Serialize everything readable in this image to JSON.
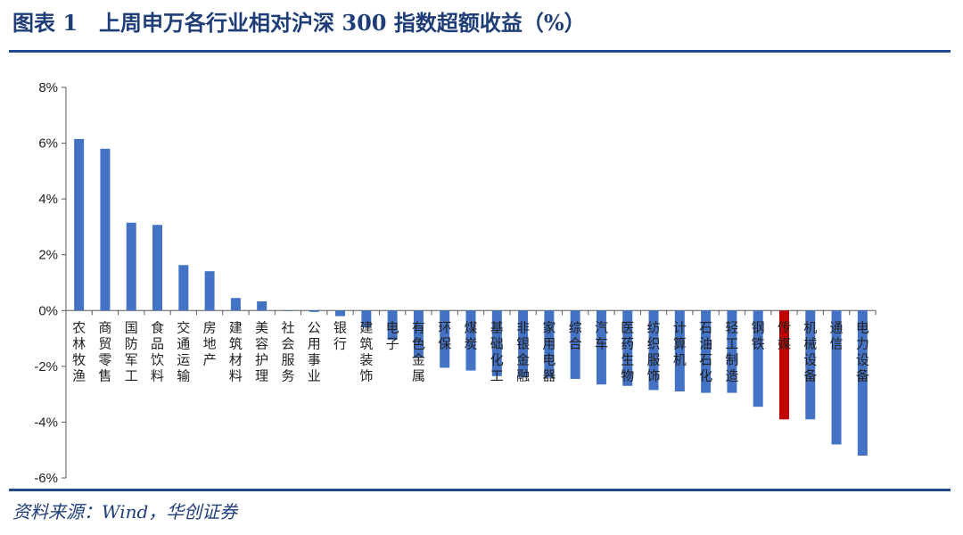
{
  "title": "图表 1　上周申万各行业相对沪深 300 指数超额收益（%）",
  "source": "资料来源：Wind，华创证券",
  "colors": {
    "bar": "#4472c4",
    "highlight": "#c00000",
    "axis": "#595959",
    "frame": "#1f4b8f"
  },
  "chart_data": {
    "type": "bar",
    "title": "上周申万各行业相对沪深 300 指数超额收益（%）",
    "xlabel": "",
    "ylabel": "",
    "ylim": [
      -6,
      8
    ],
    "yticks": [
      "8%",
      "6%",
      "4%",
      "2%",
      "0%",
      "-2%",
      "-4%",
      "-6%"
    ],
    "ytick_values": [
      8,
      6,
      4,
      2,
      0,
      -2,
      -4,
      -6
    ],
    "grid": false,
    "highlight_category": "传媒",
    "categories": [
      "农林牧渔",
      "商贸零售",
      "国防军工",
      "食品饮料",
      "交通运输",
      "房地产",
      "建筑材料",
      "美容护理",
      "社会服务",
      "公用事业",
      "银行",
      "建筑装饰",
      "电子",
      "有色金属",
      "环保",
      "煤炭",
      "基础化工",
      "非银金融",
      "家用电器",
      "综合",
      "汽车",
      "医药生物",
      "纺织服饰",
      "计算机",
      "石油石化",
      "轻工制造",
      "钢铁",
      "传媒",
      "机械设备",
      "通信",
      "电力设备"
    ],
    "values": [
      6.15,
      5.8,
      3.15,
      3.07,
      1.63,
      1.41,
      0.45,
      0.33,
      0.0,
      -0.05,
      -0.2,
      -0.6,
      -1.05,
      -1.7,
      -2.05,
      -2.15,
      -2.35,
      -2.4,
      -2.4,
      -2.45,
      -2.65,
      -2.7,
      -2.85,
      -2.9,
      -2.95,
      -2.95,
      -3.45,
      -3.9,
      -3.9,
      -4.8,
      -5.2
    ]
  }
}
